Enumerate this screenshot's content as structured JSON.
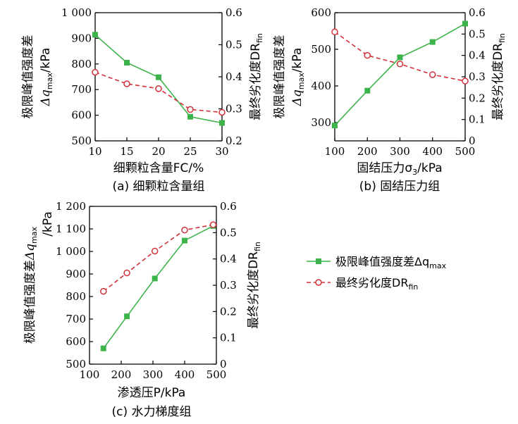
{
  "figure": {
    "colors": {
      "green": "#3cb44b",
      "red": "#d2303a",
      "axis": "#000000"
    },
    "legend": {
      "items": [
        {
          "label": "极限峰值强度差Δq",
          "sub": "max",
          "color": "#3cb44b",
          "marker": "filled-square",
          "line": "solid"
        },
        {
          "label": "最终劣化度DR",
          "sub": "fin",
          "color": "#d2303a",
          "marker": "open-circle",
          "line": "dashed"
        }
      ]
    }
  },
  "chart_data": [
    {
      "type": "line",
      "caption": "(a) 细颗粒含量组",
      "xlabel": "细颗粒含量FC/%",
      "xlim": [
        10,
        30
      ],
      "xticks": [
        "10",
        "15",
        "20",
        "25",
        "30"
      ],
      "xtick_values": [
        10,
        15,
        20,
        25,
        30
      ],
      "ylabel_left": {
        "main": "极限峰值强度差",
        "q": "Δq",
        "sub": "max",
        "unit": "/kPa"
      },
      "ylim_left": [
        500,
        1000
      ],
      "yticks_left": [
        "500",
        "600",
        "700",
        "800",
        "900",
        "1 000"
      ],
      "ytick_values_left": [
        500,
        600,
        700,
        800,
        900,
        1000
      ],
      "ylabel_right": {
        "main": "最终劣化度DR",
        "sub": "fin"
      },
      "ylim_right": [
        0.2,
        0.6
      ],
      "yticks_right": [
        "0.2",
        "0.3",
        "0.4",
        "0.5",
        "0.6"
      ],
      "ytick_values_right": [
        0.2,
        0.3,
        0.4,
        0.5,
        0.6
      ],
      "series": [
        {
          "axis": "left",
          "x": [
            10,
            15,
            20,
            25,
            30
          ],
          "values": [
            914,
            805,
            748,
            594,
            570
          ]
        },
        {
          "axis": "right",
          "x": [
            10,
            15,
            20,
            25,
            30
          ],
          "values": [
            0.414,
            0.378,
            0.363,
            0.298,
            0.289
          ]
        }
      ]
    },
    {
      "type": "line",
      "caption": "(b) 固结压力组",
      "xlabel": "固结压力σ",
      "xlabel_sub": "3",
      "xlabel_unit": "/kPa",
      "xlim": [
        100,
        500
      ],
      "xticks": [
        "100",
        "200",
        "300",
        "400",
        "500"
      ],
      "xtick_values": [
        100,
        200,
        300,
        400,
        500
      ],
      "ylabel_left": {
        "main": "极限峰值强度差",
        "q": "Δq",
        "sub": "max",
        "unit": "/kPa"
      },
      "ylim_left": [
        250,
        600
      ],
      "yticks_left": [
        "300",
        "400",
        "500",
        "600"
      ],
      "ytick_values_left": [
        300,
        400,
        500,
        600
      ],
      "ylabel_right": {
        "main": "最终劣化度DR",
        "sub": "fin"
      },
      "ylim_right": [
        0.0,
        0.6
      ],
      "yticks_right": [
        "0",
        "0.1",
        "0.2",
        "0.3",
        "0.4",
        "0.5",
        "0.6"
      ],
      "ytick_values_right": [
        0,
        0.1,
        0.2,
        0.3,
        0.4,
        0.5,
        0.6
      ],
      "series": [
        {
          "axis": "left",
          "x": [
            100,
            200,
            300,
            400,
            500
          ],
          "values": [
            292,
            387,
            478,
            520,
            570
          ]
        },
        {
          "axis": "right",
          "x": [
            100,
            200,
            300,
            400,
            500
          ],
          "values": [
            0.51,
            0.4,
            0.36,
            0.31,
            0.28
          ]
        }
      ]
    },
    {
      "type": "line",
      "caption": "(c) 水力梯度组",
      "xlabel": "渗透压P/kPa",
      "xlim": [
        100,
        500
      ],
      "xticks": [
        "100",
        "200",
        "300",
        "400",
        "500"
      ],
      "xtick_values": [
        100,
        200,
        300,
        400,
        500
      ],
      "ylabel_left": {
        "main": "极限峰值强度差",
        "q": "Δq",
        "sub": "max",
        "unit": "/kPa"
      },
      "ylim_left": [
        500,
        1200
      ],
      "yticks_left": [
        "500",
        "600",
        "700",
        "800",
        "900",
        "1 000",
        "1 100",
        "1 200"
      ],
      "ytick_values_left": [
        500,
        600,
        700,
        800,
        900,
        1000,
        1100,
        1200
      ],
      "ylabel_right": {
        "main": "最终劣化度DR",
        "sub": "fin"
      },
      "ylim_right": [
        0.0,
        0.6
      ],
      "yticks_right": [
        "0",
        "0.1",
        "0.2",
        "0.3",
        "0.4",
        "0.5",
        "0.6"
      ],
      "ytick_values_right": [
        0,
        0.1,
        0.2,
        0.3,
        0.4,
        0.5,
        0.6
      ],
      "series": [
        {
          "axis": "left",
          "x": [
            144,
            218,
            306,
            400,
            490
          ],
          "values": [
            570,
            712,
            880,
            1048,
            1113
          ]
        },
        {
          "axis": "right",
          "x": [
            144,
            218,
            306,
            400,
            490
          ],
          "values": [
            0.277,
            0.347,
            0.43,
            0.51,
            0.53
          ]
        }
      ]
    }
  ]
}
